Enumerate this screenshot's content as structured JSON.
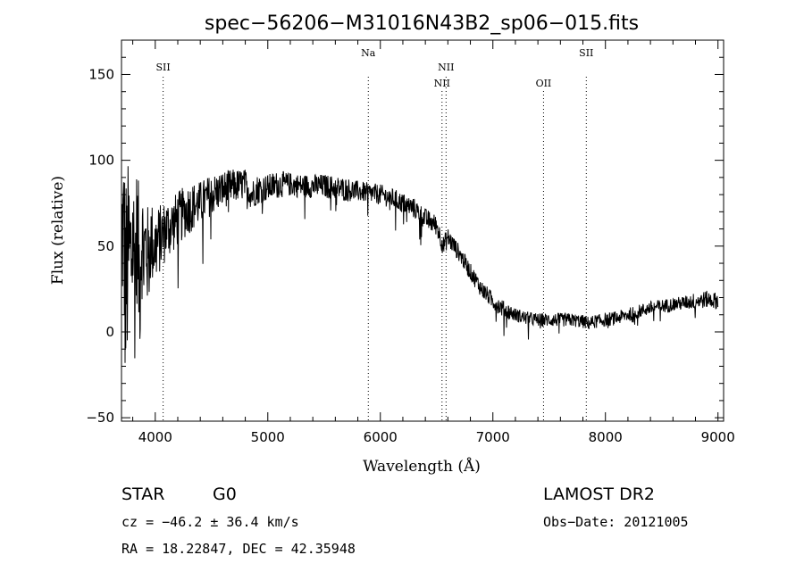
{
  "chart_data": {
    "type": "line",
    "title": "spec−56206−M31016N43B2_sp06−015.fits",
    "xlabel": "Wavelength (Å)",
    "ylabel": "Flux (relative)",
    "xlim": [
      3700,
      9050
    ],
    "ylim": [
      -52,
      170
    ],
    "x_ticks": [
      4000,
      5000,
      6000,
      7000,
      8000,
      9000
    ],
    "y_ticks": [
      -50,
      0,
      50,
      100,
      150
    ],
    "x_tick_labels": [
      "4000",
      "5000",
      "6000",
      "7000",
      "8000",
      "9000"
    ],
    "y_tick_labels": [
      "−50",
      "0",
      "50",
      "100",
      "150"
    ],
    "grid": false,
    "line_markers": [
      {
        "label": "SII",
        "wavelength": 4070,
        "row": "upper"
      },
      {
        "label": "Na",
        "wavelength": 5893,
        "row": "top"
      },
      {
        "label": "NII",
        "wavelength": 6548,
        "row": "lower"
      },
      {
        "label": "NII",
        "wavelength": 6584,
        "row": "upper"
      },
      {
        "label": "OII",
        "wavelength": 7450,
        "row": "lower"
      },
      {
        "label": "SII",
        "wavelength": 7830,
        "row": "top"
      }
    ],
    "series": [
      {
        "x": [
          3700,
          3720,
          3740,
          3760,
          3780,
          3800,
          3820,
          3840,
          3860,
          3880,
          3900,
          3920,
          3940,
          3960,
          3980,
          4000,
          4050,
          4100,
          4150,
          4200,
          4300,
          4400,
          4500,
          4600,
          4700,
          4800,
          4860,
          4900,
          5000,
          5100,
          5200,
          5300,
          5400,
          5500,
          5600,
          5700,
          5800,
          5900,
          6000,
          6100,
          6200,
          6300,
          6400,
          6500,
          6560,
          6600,
          6700,
          6800,
          6900,
          7000,
          7100,
          7200,
          7300,
          7400,
          7500,
          7600,
          7700,
          7800,
          7850,
          7900,
          8000,
          8100,
          8200,
          8300,
          8400,
          8500,
          8600,
          8700,
          8800,
          8900,
          9000
        ],
        "y": [
          60,
          55,
          20,
          50,
          40,
          55,
          35,
          60,
          30,
          55,
          45,
          50,
          40,
          55,
          50,
          50,
          55,
          60,
          62,
          66,
          72,
          75,
          80,
          83,
          85,
          86,
          80,
          83,
          84,
          86,
          86,
          85,
          85,
          85,
          84,
          83,
          82,
          81,
          80,
          78,
          75,
          72,
          66,
          62,
          50,
          55,
          46,
          35,
          25,
          18,
          13,
          10,
          8,
          7,
          7,
          7,
          7,
          6,
          5,
          6,
          7,
          8,
          10,
          12,
          14,
          15,
          16,
          17,
          18,
          19,
          18
        ],
        "noise": [
          40,
          55,
          75,
          50,
          55,
          45,
          55,
          40,
          48,
          35,
          38,
          30,
          32,
          24,
          24,
          22,
          20,
          18,
          17,
          16,
          15,
          13,
          12,
          11,
          10,
          9,
          9,
          9,
          8,
          8,
          7,
          7,
          7,
          7,
          7,
          7,
          6,
          6,
          6,
          6,
          6,
          6,
          6,
          6,
          6,
          6,
          5,
          5,
          5,
          5,
          5,
          4,
          4,
          4,
          4,
          4,
          4,
          4,
          4,
          4,
          4,
          4,
          4,
          4,
          4,
          4,
          4,
          4,
          5,
          5,
          5
        ]
      }
    ]
  },
  "info": {
    "class_label": "STAR",
    "subclass": "G0",
    "cz": "cz = −46.2 ± 36.4 km/s",
    "radec": "RA =  18.22847, DEC =  42.35948",
    "survey": "LAMOST DR2",
    "obs_date": "Obs−Date: 20121005"
  }
}
